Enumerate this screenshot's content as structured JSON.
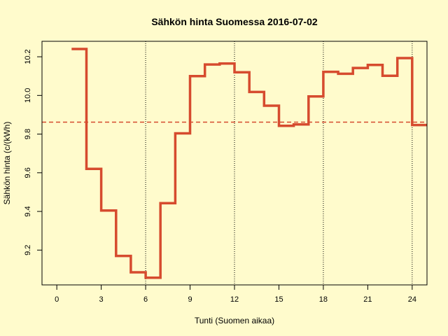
{
  "chart_data": {
    "type": "line",
    "step": true,
    "title": "Sähkön hinta Suomessa 2016-07-02",
    "xlabel": "Tunti (Suomen aikaa)",
    "ylabel": "Sähkön hinta (c/(kWh)",
    "xlim": [
      -1,
      25
    ],
    "ylim": [
      9.02,
      10.28
    ],
    "x_ticks": [
      0,
      3,
      6,
      9,
      12,
      15,
      18,
      21,
      24
    ],
    "y_ticks": [
      9.2,
      9.4,
      9.6,
      9.8,
      10.0,
      10.2
    ],
    "x_tick_labels": [
      "0",
      "3",
      "6",
      "9",
      "12",
      "15",
      "18",
      "21",
      "24"
    ],
    "y_tick_labels": [
      "9.2",
      "9.4",
      "9.6",
      "9.8",
      "10.0",
      "10.2"
    ],
    "vertical_gridlines": [
      6,
      12,
      18,
      24
    ],
    "average": 9.862,
    "series": [
      {
        "hours": [
          1,
          2,
          3,
          4,
          5,
          6,
          7,
          8,
          9,
          10,
          11,
          12,
          13,
          14,
          15,
          16,
          17,
          18,
          19,
          20,
          21,
          22,
          23,
          24
        ],
        "values": [
          10.24,
          9.62,
          9.405,
          9.17,
          9.085,
          9.057,
          9.443,
          9.804,
          10.1,
          10.16,
          10.165,
          10.12,
          10.018,
          9.947,
          9.843,
          9.85,
          9.995,
          10.122,
          10.112,
          10.142,
          10.158,
          10.102,
          10.193,
          9.847
        ]
      }
    ],
    "colors": {
      "background": "#FFFBCC",
      "line": "#D64B2E",
      "average_line": "#D64B2E",
      "axis": "#000000"
    }
  }
}
